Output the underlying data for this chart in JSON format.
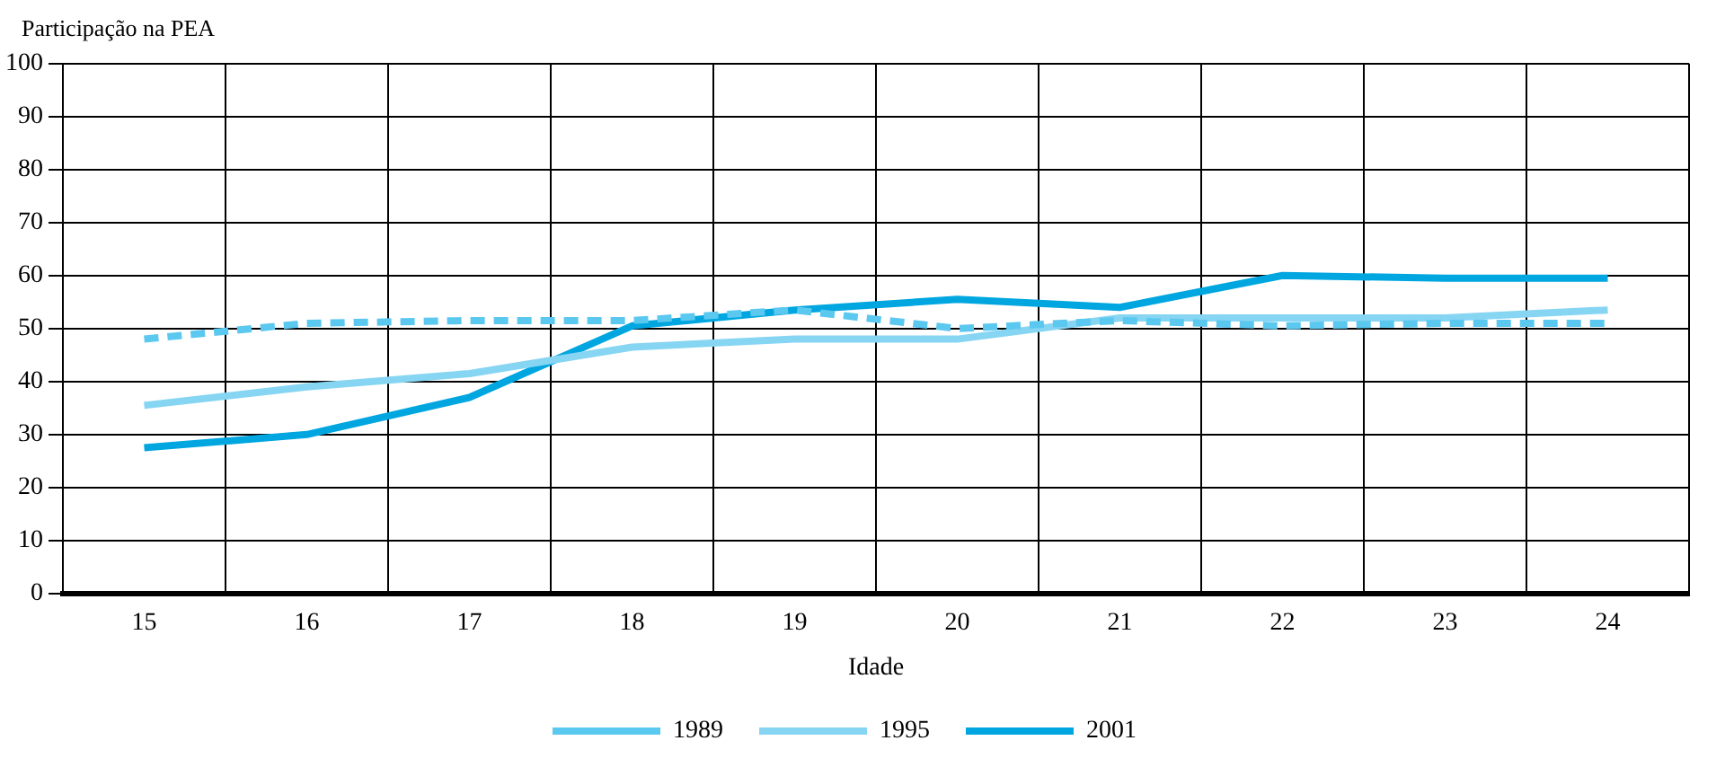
{
  "chart_data": {
    "type": "line",
    "ylabel": "Participação na PEA",
    "xlabel": "Idade",
    "categories": [
      "15",
      "16",
      "17",
      "18",
      "19",
      "20",
      "21",
      "22",
      "23",
      "24"
    ],
    "ylim": [
      0,
      100
    ],
    "yticks": [
      0,
      10,
      20,
      30,
      40,
      50,
      60,
      70,
      80,
      90,
      100
    ],
    "grid": true,
    "legend": "bottom",
    "marker": "none",
    "series": [
      {
        "name": "1989",
        "color": "#5bc8ef",
        "line_style": "dashed",
        "values": [
          48,
          51,
          51.5,
          51.5,
          53.5,
          50,
          51.5,
          50.5,
          51,
          51
        ]
      },
      {
        "name": "1995",
        "color": "#86d5f3",
        "line_style": "solid",
        "values": [
          35.5,
          39,
          41.5,
          46.5,
          48,
          48,
          52,
          52,
          52,
          53.5
        ]
      },
      {
        "name": "2001",
        "color": "#00a6e0",
        "line_style": "solid",
        "values": [
          27.5,
          30,
          37,
          50.5,
          53.5,
          55.5,
          54,
          60,
          59.5,
          59.5
        ]
      }
    ]
  }
}
